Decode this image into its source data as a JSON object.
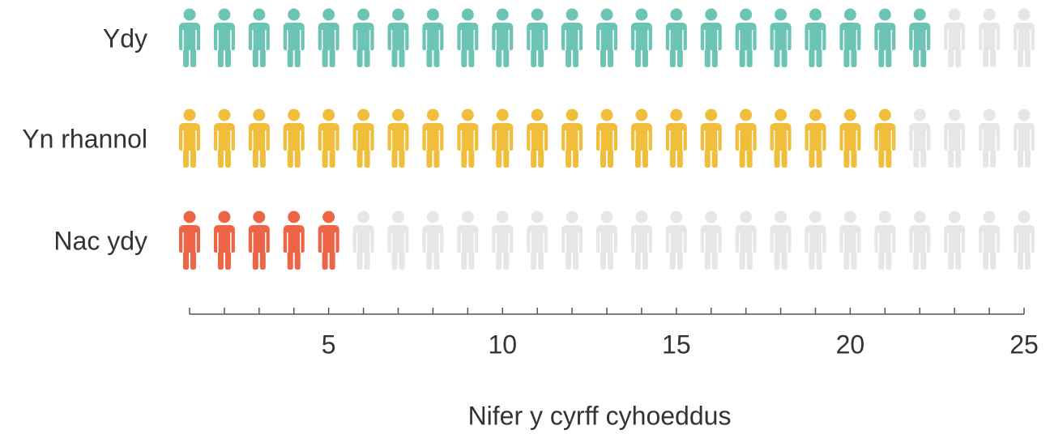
{
  "chart_data": {
    "type": "pictogram",
    "categories": [
      "Ydy",
      "Yn rhannol",
      "Nac ydy"
    ],
    "values": [
      22,
      21,
      5
    ],
    "colors": [
      "#6cc4b4",
      "#f0be3a",
      "#ee6446"
    ],
    "empty_color": "#e6e6e6",
    "xlim": [
      1,
      25
    ],
    "xticks": [
      5,
      10,
      15,
      20,
      25
    ],
    "minor_xticks": [
      1,
      2,
      3,
      4,
      5,
      6,
      7,
      8,
      9,
      10,
      11,
      12,
      13,
      14,
      15,
      16,
      17,
      18,
      19,
      20,
      21,
      22,
      23,
      24,
      25
    ],
    "xlabel": "Nifer y cyrff cyhoeddus"
  }
}
